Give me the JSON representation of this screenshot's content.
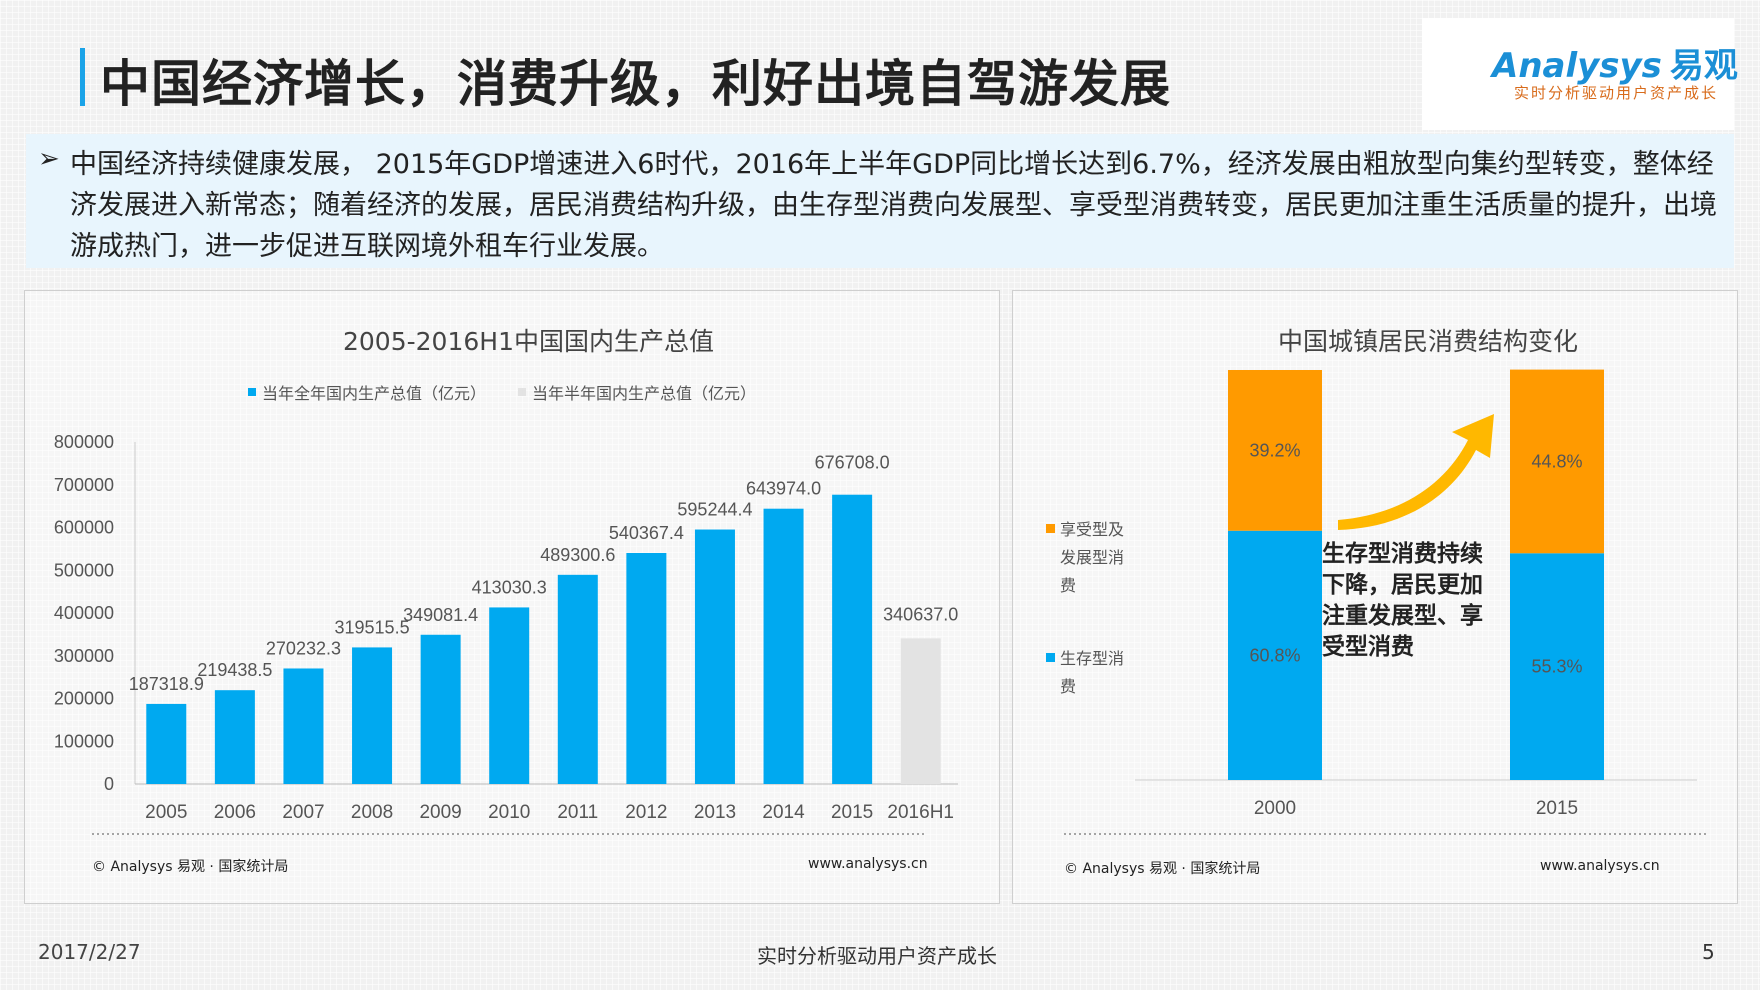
{
  "page": {
    "title": "中国经济增长，消费升级，利好出境自驾游发展",
    "logo_text": "Analysys",
    "logo_cn": "易观",
    "logo_slogan": "实时分析驱动用户资产成长",
    "summary_bullet": "➢",
    "summary": "中国经济持续健康发展， 2015年GDP增速进入6时代，2016年上半年GDP同比增长达到6.7%，经济发展由粗放型向集约型转变，整体经济发展进入新常态；随着经济的发展，居民消费结构升级，由生存型消费向发展型、享受型消费转变，居民更加注重生活质量的提升，出境游成热门，进一步促进互联网境外租车行业发展。",
    "footer_date": "2017/2/27",
    "footer_center": "实时分析驱动用户资产成长",
    "page_number": "5"
  },
  "sources": {
    "left": "© Analysys 易观 · 国家统计局",
    "left_url": "www.analysys.cn",
    "right": "© Analysys 易观 · 国家统计局",
    "right_url": "www.analysys.cn"
  },
  "chart_data": [
    {
      "type": "bar",
      "title": "2005-2016H1中国国内生产总值",
      "categories": [
        "2005",
        "2006",
        "2007",
        "2008",
        "2009",
        "2010",
        "2011",
        "2012",
        "2013",
        "2014",
        "2015",
        "2016H1"
      ],
      "series": [
        {
          "name": "当年全年国内生产总值（亿元）",
          "color": "#00a9f0",
          "values": [
            187318.9,
            219438.5,
            270232.3,
            319515.5,
            349081.4,
            413030.3,
            489300.6,
            540367.4,
            595244.4,
            643974.0,
            676708.0,
            null
          ]
        },
        {
          "name": "当年半年国内生产总值（亿元）",
          "color": "#e3e3e3",
          "values": [
            null,
            null,
            null,
            null,
            null,
            null,
            null,
            null,
            null,
            null,
            null,
            340637.0
          ]
        }
      ],
      "data_labels": [
        "187318.9",
        "219438.5",
        "270232.3",
        "319515.5",
        "349081.4",
        "413030.3",
        "489300.6",
        "540367.4",
        "595244.4",
        "643974.0",
        "676708.0",
        "340637.0"
      ],
      "yticks": [
        "0",
        "100000",
        "200000",
        "300000",
        "400000",
        "500000",
        "600000",
        "700000",
        "800000"
      ],
      "ylim": [
        0,
        800000
      ],
      "legend": "top",
      "grid": false
    },
    {
      "type": "bar",
      "stacked": true,
      "percent": true,
      "title": "中国城镇居民消费结构变化",
      "categories": [
        "2000",
        "2015"
      ],
      "series": [
        {
          "name": "生存型消费",
          "color": "#00a9f0",
          "values": [
            60.8,
            55.3
          ],
          "labels": [
            "60.8%",
            "55.3%"
          ]
        },
        {
          "name": "享受型及发展型消费",
          "color": "#ff9a00",
          "values": [
            39.2,
            44.8
          ],
          "labels": [
            "39.2%",
            "44.8%"
          ]
        }
      ],
      "legend": "left",
      "annotation": "生存型消费持续下降，居民更加注重发展型、享受型消费",
      "annotation_color": "#ffb800"
    }
  ]
}
